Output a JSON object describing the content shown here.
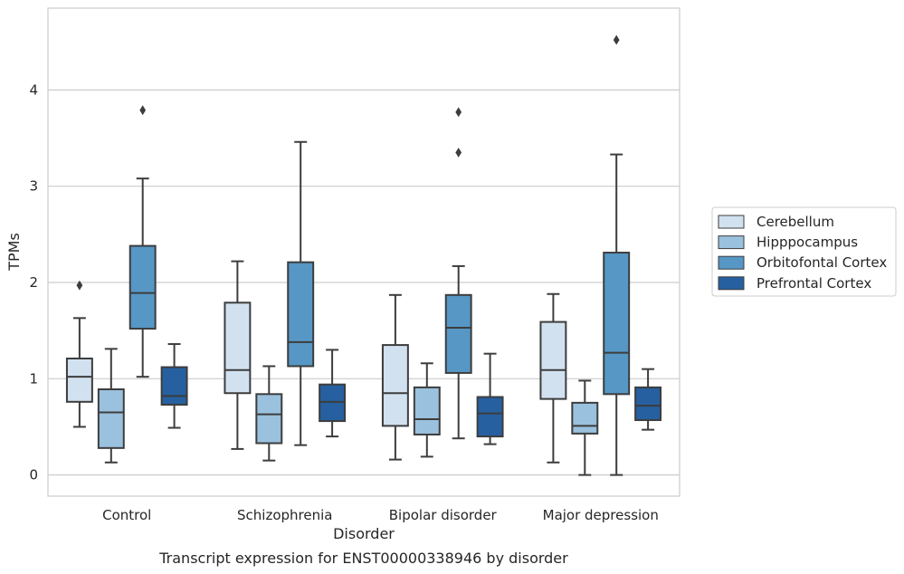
{
  "caption": "Transcript expression for ENST00000338946 by disorder",
  "chart_data": {
    "type": "box",
    "title": "",
    "xlabel": "Disorder",
    "ylabel": "TPMs",
    "categories": [
      "Control",
      "Schizophrenia",
      "Bipolar disorder",
      "Major depression"
    ],
    "ylim": [
      -0.22,
      4.85
    ],
    "yticks": [
      0,
      1,
      2,
      3,
      4
    ],
    "grid": "horizontal",
    "legend_position": "right",
    "colors": {
      "Cerebellum": "#d2e1f0",
      "Hipppocampus": "#9ac1dd",
      "Orbitofontal Cortex": "#5697c5",
      "Prefrontal Cortex": "#2660a0"
    },
    "series": [
      {
        "name": "Cerebellum",
        "boxes": [
          {
            "whislo": 0.5,
            "q1": 0.76,
            "med": 1.02,
            "q3": 1.21,
            "whishi": 1.63,
            "fliers": [
              1.97
            ]
          },
          {
            "whislo": 0.27,
            "q1": 0.85,
            "med": 1.09,
            "q3": 1.79,
            "whishi": 2.22,
            "fliers": []
          },
          {
            "whislo": 0.16,
            "q1": 0.51,
            "med": 0.85,
            "q3": 1.35,
            "whishi": 1.87,
            "fliers": []
          },
          {
            "whislo": 0.13,
            "q1": 0.79,
            "med": 1.09,
            "q3": 1.59,
            "whishi": 1.88,
            "fliers": []
          }
        ]
      },
      {
        "name": "Hipppocampus",
        "boxes": [
          {
            "whislo": 0.13,
            "q1": 0.28,
            "med": 0.65,
            "q3": 0.89,
            "whishi": 1.31,
            "fliers": []
          },
          {
            "whislo": 0.15,
            "q1": 0.33,
            "med": 0.63,
            "q3": 0.84,
            "whishi": 1.13,
            "fliers": []
          },
          {
            "whislo": 0.19,
            "q1": 0.42,
            "med": 0.58,
            "q3": 0.91,
            "whishi": 1.16,
            "fliers": []
          },
          {
            "whislo": 0.0,
            "q1": 0.43,
            "med": 0.51,
            "q3": 0.75,
            "whishi": 0.98,
            "fliers": []
          }
        ]
      },
      {
        "name": "Orbitofontal Cortex",
        "boxes": [
          {
            "whislo": 1.02,
            "q1": 1.52,
            "med": 1.89,
            "q3": 2.38,
            "whishi": 3.08,
            "fliers": [
              3.79
            ]
          },
          {
            "whislo": 0.31,
            "q1": 1.13,
            "med": 1.38,
            "q3": 2.21,
            "whishi": 3.46,
            "fliers": []
          },
          {
            "whislo": 0.38,
            "q1": 1.06,
            "med": 1.53,
            "q3": 1.87,
            "whishi": 2.17,
            "fliers": [
              3.35,
              3.77
            ]
          },
          {
            "whislo": 0.0,
            "q1": 0.84,
            "med": 1.27,
            "q3": 2.31,
            "whishi": 3.33,
            "fliers": [
              4.52
            ]
          }
        ]
      },
      {
        "name": "Prefrontal Cortex",
        "boxes": [
          {
            "whislo": 0.49,
            "q1": 0.73,
            "med": 0.82,
            "q3": 1.12,
            "whishi": 1.36,
            "fliers": []
          },
          {
            "whislo": 0.4,
            "q1": 0.56,
            "med": 0.76,
            "q3": 0.94,
            "whishi": 1.3,
            "fliers": []
          },
          {
            "whislo": 0.32,
            "q1": 0.4,
            "med": 0.64,
            "q3": 0.81,
            "whishi": 1.26,
            "fliers": []
          },
          {
            "whislo": 0.47,
            "q1": 0.57,
            "med": 0.72,
            "q3": 0.91,
            "whishi": 1.1,
            "fliers": []
          }
        ]
      }
    ]
  }
}
